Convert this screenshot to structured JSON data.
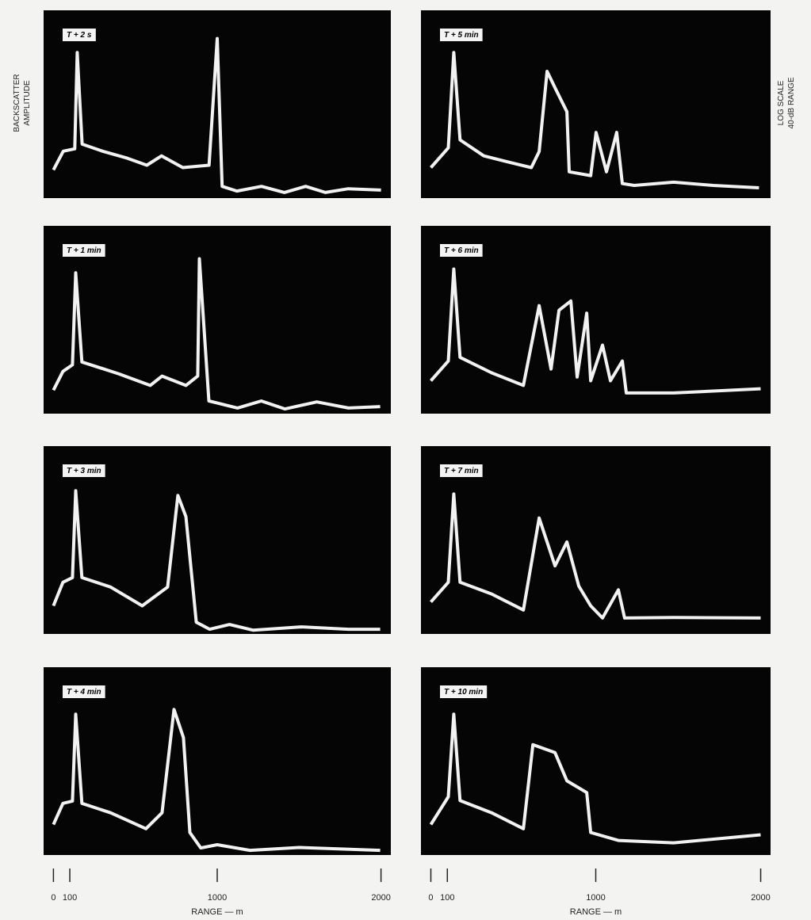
{
  "chart_data": [
    {
      "type": "line",
      "title": "T + 2 s",
      "y_label": [
        "BACKSCATTER",
        "AMPLITUDE"
      ],
      "x": [
        0,
        60,
        130,
        145,
        175,
        300,
        450,
        570,
        660,
        790,
        950,
        1000,
        1030,
        1120,
        1270,
        1410,
        1540,
        1660,
        1800,
        2000
      ],
      "values": [
        6,
        10,
        10.5,
        31,
        11.5,
        10,
        8.5,
        7,
        9,
        6.5,
        7,
        34,
        2.5,
        1.5,
        2.5,
        1.2,
        2.5,
        1.2,
        2,
        1.7
      ],
      "xlim": [
        -60,
        2060
      ],
      "ylim": [
        0,
        40
      ],
      "color": "#f2f2f2"
    },
    {
      "type": "line",
      "title": "T + 1 min",
      "x": [
        0,
        58,
        116,
        136,
        174,
        397,
        591,
        663,
        809,
        881,
        891,
        949,
        1124,
        1269,
        1414,
        1608,
        1801,
        1995
      ],
      "values": [
        5,
        9,
        10.4,
        30,
        11,
        8.5,
        6,
        8,
        6,
        8,
        33,
        2.7,
        1.2,
        2.7,
        1,
        2.5,
        1.2,
        1.5
      ],
      "xlim": [
        -60,
        2060
      ],
      "ylim": [
        0,
        40
      ],
      "color": "#f2f2f2"
    },
    {
      "type": "line",
      "title": "T + 3 min",
      "x": [
        0,
        58,
        116,
        136,
        174,
        349,
        542,
        697,
        760,
        809,
        872,
        954,
        1075,
        1220,
        1511,
        1801,
        1995
      ],
      "values": [
        6,
        11,
        12,
        30.5,
        12,
        10,
        6,
        10,
        29.5,
        25,
        2.5,
        1,
        2,
        0.8,
        1.5,
        1,
        1
      ],
      "xlim": [
        -60,
        2060
      ],
      "ylim": [
        0,
        40
      ],
      "color": "#f2f2f2"
    },
    {
      "type": "line",
      "title": "T + 4 min",
      "x": [
        0,
        58,
        116,
        136,
        174,
        349,
        565,
        663,
        736,
        794,
        833,
        900,
        1000,
        1200,
        1500,
        1995
      ],
      "values": [
        6.5,
        11,
        11.5,
        30,
        11,
        9,
        5.6,
        9,
        31,
        25,
        4.8,
        1.5,
        2.2,
        1,
        1.6,
        1
      ],
      "xlim": [
        -60,
        2060
      ],
      "ylim": [
        0,
        40
      ],
      "xticks": [
        0,
        100,
        1000,
        2000
      ],
      "x_label": "RANGE — m",
      "color": "#f2f2f2"
    },
    {
      "type": "line",
      "title": "T + 5 min",
      "y_label": [
        "LOG SCALE",
        "40-dB RANGE"
      ],
      "x": [
        0,
        106,
        139,
        177,
        321,
        513,
        609,
        657,
        705,
        753,
        825,
        839,
        969,
        1002,
        1065,
        1127,
        1161,
        1233,
        1472,
        1712,
        1990
      ],
      "values": [
        6.5,
        10.7,
        31,
        12.4,
        9,
        7.3,
        6.5,
        9.9,
        27,
        23.5,
        18.4,
        5.6,
        4.8,
        14,
        5.6,
        14,
        3.1,
        2.7,
        3.4,
        2.7,
        2.2
      ],
      "xlim": [
        -60,
        2060
      ],
      "ylim": [
        0,
        40
      ],
      "color": "#f2f2f2"
    },
    {
      "type": "line",
      "title": "T + 6 min",
      "x": [
        0,
        106,
        139,
        177,
        369,
        561,
        657,
        729,
        777,
        849,
        887,
        945,
        969,
        1041,
        1089,
        1161,
        1185,
        1472,
        2000
      ],
      "values": [
        7,
        11.2,
        30.8,
        12,
        8.7,
        6,
        23,
        9.5,
        22,
        24,
        7.8,
        21.4,
        7,
        14.6,
        7,
        11.2,
        4.4,
        4.4,
        5.3
      ],
      "xlim": [
        -60,
        2060
      ],
      "ylim": [
        0,
        40
      ],
      "color": "#f2f2f2"
    },
    {
      "type": "line",
      "title": "T + 7 min",
      "x": [
        0,
        106,
        139,
        177,
        369,
        561,
        657,
        753,
        825,
        897,
        969,
        1041,
        1137,
        1175,
        1472,
        2000
      ],
      "values": [
        6.8,
        11,
        29.8,
        11,
        8.5,
        5.1,
        24.7,
        14.5,
        19.6,
        10.2,
        6,
        3.4,
        9.4,
        3.4,
        3.5,
        3.4
      ],
      "xlim": [
        -60,
        2060
      ],
      "ylim": [
        0,
        40
      ],
      "color": "#f2f2f2"
    },
    {
      "type": "line",
      "title": "T + 10 min",
      "x": [
        0,
        106,
        139,
        177,
        369,
        561,
        619,
        753,
        825,
        945,
        969,
        1137,
        1472,
        2000
      ],
      "values": [
        6.5,
        12.4,
        30,
        11.6,
        9,
        5.6,
        23.5,
        21.8,
        15.8,
        13.3,
        4.8,
        3.1,
        2.6,
        4.3
      ],
      "xlim": [
        -60,
        2060
      ],
      "ylim": [
        0,
        40
      ],
      "xticks": [
        0,
        100,
        1000,
        2000
      ],
      "x_label": "RANGE — m",
      "color": "#f2f2f2"
    }
  ]
}
